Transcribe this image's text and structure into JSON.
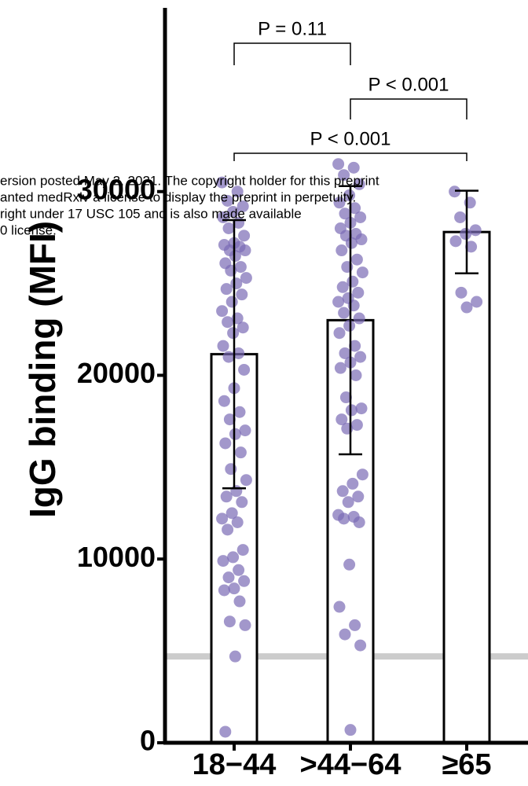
{
  "chart_data": {
    "type": "bar",
    "y_label": "IgG binding (MFI)",
    "categories": [
      "18−44",
      ">44−64",
      "≥65"
    ],
    "values": [
      21150,
      23000,
      27800
    ],
    "errors": [
      7300,
      7300,
      2250
    ],
    "points": [
      [
        30500,
        30000,
        29500,
        29200,
        28900,
        28600,
        28300,
        28000,
        27600,
        27200,
        27100,
        27000,
        26800,
        26800,
        26500,
        26100,
        25900,
        25700,
        25300,
        25000,
        24700,
        24400,
        24000,
        23500,
        23100,
        22900,
        22600,
        22300,
        21600,
        21200,
        21000,
        20300,
        19300,
        18600,
        18000,
        17600,
        17000,
        16800,
        16300,
        15800,
        14900,
        14300,
        13700,
        13400,
        13100,
        12500,
        12200,
        12000,
        11600,
        10500,
        10100,
        9900,
        9400,
        9000,
        8800,
        8400,
        8300,
        7700,
        6600,
        6400,
        4700,
        600
      ],
      [
        31500,
        31300,
        30900,
        30400,
        29800,
        29400,
        29100,
        28800,
        28600,
        28300,
        28000,
        27700,
        27600,
        27400,
        27200,
        26800,
        26300,
        25900,
        25600,
        25100,
        24800,
        24500,
        24200,
        24000,
        23800,
        23400,
        23100,
        22700,
        22300,
        21600,
        21200,
        21000,
        20700,
        20400,
        20000,
        18800,
        18200,
        18100,
        17600,
        17300,
        17100,
        14600,
        14100,
        13700,
        13400,
        13100,
        12400,
        12300,
        12200,
        12000,
        9700,
        7400,
        6400,
        5900,
        5300,
        700
      ],
      [
        30000,
        29400,
        28600,
        27900,
        27700,
        27300,
        27000,
        24500,
        24000,
        23700
      ]
    ],
    "bar_color": "#ffffff",
    "point_color": "#7a6bb5",
    "reference_line": 4700,
    "reference_color": "#cccccc",
    "comparisons": [
      {
        "label": "P = 0.11",
        "from": "18−44",
        "to": ">44−64"
      },
      {
        "label": "P < 0.001",
        "from": ">44−64",
        "to": "≥65"
      },
      {
        "label": "P < 0.001",
        "from": "18−44",
        "to": "≥65"
      }
    ],
    "ylim": [
      0,
      40000
    ],
    "yticks": [
      0,
      10000,
      20000,
      30000
    ]
  },
  "watermark": [
    "ersion posted May 2, 2021. The copyright holder for this preprint",
    "anted medRxiv a license to display the preprint in perpetuity.",
    "right under 17 USC 105 and is also made available",
    "0 license."
  ]
}
